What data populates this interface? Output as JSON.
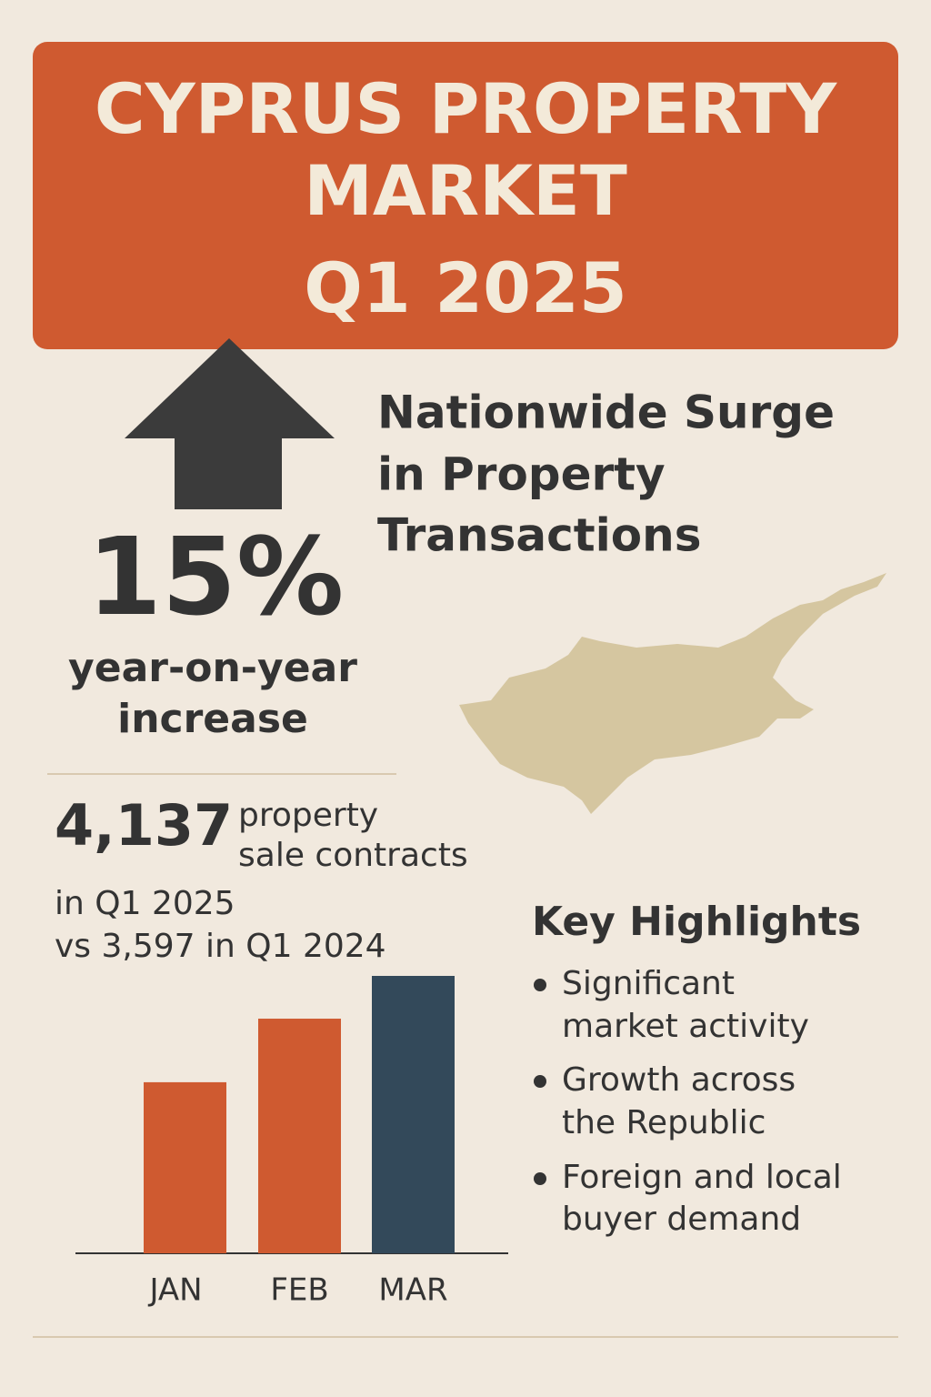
{
  "header": {
    "title_lines": [
      "CYPRUS PROPERTY",
      "MARKET",
      "Q1 2025"
    ]
  },
  "headline": {
    "lines": [
      "Nationwide Surge",
      "in Property",
      "Transactions"
    ]
  },
  "stat": {
    "value": "15%",
    "label_lines": [
      "year-on-year",
      "increase"
    ]
  },
  "contracts": {
    "count": "4,137",
    "label_lines": [
      "property",
      "sale contracts"
    ],
    "lines": [
      "in Q1 2025",
      "vs 3,597 in Q1 2024"
    ]
  },
  "chart_data": {
    "type": "bar",
    "categories": [
      "JAN",
      "FEB",
      "MAR"
    ],
    "values": [
      1036,
      1421,
      1680
    ],
    "colors": [
      "#cf5a30",
      "#cf5a30",
      "#33495a"
    ]
  },
  "highlights": {
    "title": "Key Highlights",
    "items": [
      [
        "Significant",
        "market activity"
      ],
      [
        "Growth across",
        "the Republic"
      ],
      [
        "Foreign and local",
        "buyer demand"
      ]
    ]
  }
}
